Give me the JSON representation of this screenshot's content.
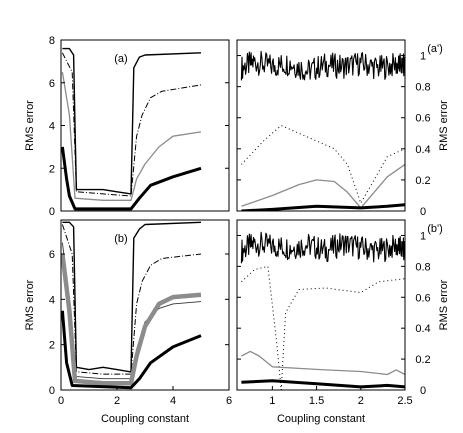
{
  "chart_data": [
    {
      "id": "a",
      "type": "line",
      "panel_label": "(a)",
      "ylabel": "RMS error",
      "xlabel": "",
      "xlim": [
        0,
        6
      ],
      "ylim": [
        0,
        8
      ],
      "yticks": [
        0,
        2,
        4,
        6,
        8
      ],
      "series": [
        {
          "style": "thin-solid",
          "points": [
            [
              0.05,
              7.6
            ],
            [
              0.3,
              7.6
            ],
            [
              0.45,
              7.3
            ],
            [
              0.5,
              4.0
            ],
            [
              0.55,
              1.0
            ],
            [
              1.0,
              1.0
            ],
            [
              1.5,
              1.0
            ],
            [
              2.0,
              0.9
            ],
            [
              2.5,
              0.8
            ],
            [
              2.6,
              6.7
            ],
            [
              2.8,
              7.2
            ],
            [
              3.0,
              7.3
            ],
            [
              5.0,
              7.4
            ]
          ]
        },
        {
          "style": "dash-dot",
          "points": [
            [
              0.05,
              7.4
            ],
            [
              0.4,
              6.5
            ],
            [
              0.55,
              0.9
            ],
            [
              1.5,
              0.8
            ],
            [
              2.5,
              0.7
            ],
            [
              2.7,
              3.5
            ],
            [
              2.9,
              4.5
            ],
            [
              3.2,
              5.3
            ],
            [
              3.6,
              5.6
            ],
            [
              5.0,
              5.9
            ]
          ]
        },
        {
          "style": "gray",
          "points": [
            [
              0.05,
              6.5
            ],
            [
              0.3,
              4.5
            ],
            [
              0.5,
              0.6
            ],
            [
              1.5,
              0.5
            ],
            [
              2.5,
              0.5
            ],
            [
              2.7,
              1.5
            ],
            [
              3.0,
              2.2
            ],
            [
              3.5,
              3.0
            ],
            [
              4.0,
              3.5
            ],
            [
              5.0,
              3.7
            ]
          ]
        },
        {
          "style": "thick",
          "points": [
            [
              0.05,
              3.0
            ],
            [
              0.2,
              1.5
            ],
            [
              0.3,
              0.7
            ],
            [
              0.5,
              0.1
            ],
            [
              2.5,
              0.1
            ],
            [
              2.8,
              0.6
            ],
            [
              3.2,
              1.2
            ],
            [
              4.0,
              1.6
            ],
            [
              5.0,
              2.0
            ]
          ]
        }
      ]
    },
    {
      "id": "a-prime",
      "type": "line",
      "panel_label": "(a')",
      "ylabel": "RMS error",
      "xlabel": "",
      "xlim": [
        0.6,
        2.5
      ],
      "ylim": [
        0,
        1.1
      ],
      "yticks": [
        0,
        0.2,
        0.4,
        0.6,
        0.8,
        1
      ],
      "series": [
        {
          "style": "noisy",
          "points": [
            [
              0.65,
              0.92
            ],
            [
              0.8,
              0.96
            ],
            [
              1.0,
              0.93
            ],
            [
              1.2,
              0.95
            ],
            [
              1.4,
              0.9
            ],
            [
              1.6,
              0.94
            ],
            [
              1.8,
              0.93
            ],
            [
              2.0,
              0.95
            ],
            [
              2.2,
              0.92
            ],
            [
              2.4,
              0.94
            ],
            [
              2.5,
              0.93
            ]
          ]
        },
        {
          "style": "dotted",
          "points": [
            [
              0.65,
              0.3
            ],
            [
              0.9,
              0.45
            ],
            [
              1.1,
              0.55
            ],
            [
              1.3,
              0.5
            ],
            [
              1.5,
              0.45
            ],
            [
              1.7,
              0.4
            ],
            [
              1.85,
              0.3
            ],
            [
              2.0,
              0.05
            ],
            [
              2.15,
              0.2
            ],
            [
              2.3,
              0.35
            ],
            [
              2.5,
              0.4
            ]
          ]
        },
        {
          "style": "gray",
          "points": [
            [
              0.65,
              0.03
            ],
            [
              1.0,
              0.1
            ],
            [
              1.3,
              0.17
            ],
            [
              1.5,
              0.2
            ],
            [
              1.7,
              0.19
            ],
            [
              1.85,
              0.12
            ],
            [
              2.0,
              0.02
            ],
            [
              2.15,
              0.12
            ],
            [
              2.3,
              0.22
            ],
            [
              2.5,
              0.3
            ]
          ]
        },
        {
          "style": "thick",
          "points": [
            [
              0.65,
              0.0
            ],
            [
              1.0,
              0.01
            ],
            [
              1.5,
              0.03
            ],
            [
              2.0,
              0.02
            ],
            [
              2.3,
              0.03
            ],
            [
              2.5,
              0.04
            ]
          ]
        }
      ]
    },
    {
      "id": "b",
      "type": "line",
      "panel_label": "(b)",
      "ylabel": "RMS error",
      "xlabel": "Coupling constant",
      "xlim": [
        0,
        6
      ],
      "ylim": [
        0,
        7.5
      ],
      "xticks": [
        0,
        2,
        4,
        6
      ],
      "yticks": [
        0,
        2,
        4,
        6
      ],
      "series": [
        {
          "style": "thin-solid",
          "points": [
            [
              0.05,
              7.4
            ],
            [
              0.3,
              7.4
            ],
            [
              0.45,
              7.2
            ],
            [
              0.5,
              4.0
            ],
            [
              0.55,
              1.0
            ],
            [
              1.0,
              0.9
            ],
            [
              1.5,
              1.0
            ],
            [
              2.0,
              0.9
            ],
            [
              2.5,
              0.8
            ],
            [
              2.6,
              6.7
            ],
            [
              2.8,
              7.1
            ],
            [
              3.0,
              7.3
            ],
            [
              5.0,
              7.4
            ]
          ]
        },
        {
          "style": "dash-dot",
          "points": [
            [
              0.05,
              7.3
            ],
            [
              0.4,
              6.0
            ],
            [
              0.55,
              0.8
            ],
            [
              1.5,
              0.7
            ],
            [
              2.5,
              0.7
            ],
            [
              2.7,
              3.8
            ],
            [
              2.9,
              4.8
            ],
            [
              3.2,
              5.5
            ],
            [
              3.6,
              5.8
            ],
            [
              5.0,
              6.0
            ]
          ]
        },
        {
          "style": "thin-bundle",
          "points": [
            [
              0.05,
              6.5
            ],
            [
              0.3,
              4.0
            ],
            [
              0.5,
              0.6
            ],
            [
              1.5,
              0.5
            ],
            [
              2.5,
              0.5
            ],
            [
              2.7,
              1.8
            ],
            [
              3.0,
              3.0
            ],
            [
              3.5,
              3.6
            ],
            [
              4.0,
              3.8
            ],
            [
              5.0,
              3.9
            ]
          ]
        },
        {
          "style": "gray-thick",
          "points": [
            [
              0.05,
              6.0
            ],
            [
              0.3,
              3.5
            ],
            [
              0.5,
              0.4
            ],
            [
              1.5,
              0.3
            ],
            [
              2.5,
              0.3
            ],
            [
              2.7,
              1.5
            ],
            [
              3.0,
              2.8
            ],
            [
              3.5,
              3.8
            ],
            [
              4.0,
              4.1
            ],
            [
              5.0,
              4.2
            ]
          ]
        },
        {
          "style": "thick",
          "points": [
            [
              0.05,
              3.5
            ],
            [
              0.2,
              1.2
            ],
            [
              0.4,
              0.2
            ],
            [
              2.5,
              0.1
            ],
            [
              2.8,
              0.5
            ],
            [
              3.2,
              1.2
            ],
            [
              4.0,
              1.9
            ],
            [
              5.0,
              2.4
            ]
          ]
        }
      ]
    },
    {
      "id": "b-prime",
      "type": "line",
      "panel_label": "(b')",
      "ylabel": "RMS error",
      "xlabel": "Coupling constant",
      "xlim": [
        0.6,
        2.5
      ],
      "ylim": [
        0,
        1.1
      ],
      "xticks": [
        1,
        1.5,
        2,
        2.5
      ],
      "yticks": [
        0,
        0.2,
        0.4,
        0.6,
        0.8,
        1
      ],
      "series": [
        {
          "style": "noisy",
          "points": [
            [
              0.65,
              0.9
            ],
            [
              0.8,
              0.95
            ],
            [
              1.0,
              0.93
            ],
            [
              1.2,
              0.92
            ],
            [
              1.4,
              0.94
            ],
            [
              1.6,
              0.9
            ],
            [
              1.8,
              0.95
            ],
            [
              2.0,
              0.92
            ],
            [
              2.2,
              0.9
            ],
            [
              2.4,
              0.93
            ],
            [
              2.5,
              0.9
            ]
          ]
        },
        {
          "style": "dotted",
          "points": [
            [
              0.65,
              0.7
            ],
            [
              0.8,
              0.78
            ],
            [
              0.95,
              0.8
            ],
            [
              1.05,
              0.3
            ],
            [
              1.1,
              0.0
            ],
            [
              1.15,
              0.5
            ],
            [
              1.3,
              0.65
            ],
            [
              1.6,
              0.66
            ],
            [
              2.0,
              0.63
            ],
            [
              2.2,
              0.7
            ],
            [
              2.5,
              0.72
            ]
          ]
        },
        {
          "style": "gray",
          "points": [
            [
              0.65,
              0.22
            ],
            [
              0.75,
              0.25
            ],
            [
              0.85,
              0.22
            ],
            [
              1.0,
              0.15
            ],
            [
              1.3,
              0.14
            ],
            [
              1.6,
              0.13
            ],
            [
              2.0,
              0.12
            ],
            [
              2.3,
              0.1
            ],
            [
              2.4,
              0.13
            ],
            [
              2.5,
              0.1
            ]
          ]
        },
        {
          "style": "thick",
          "points": [
            [
              0.65,
              0.05
            ],
            [
              1.0,
              0.06
            ],
            [
              1.5,
              0.04
            ],
            [
              2.0,
              0.02
            ],
            [
              2.3,
              0.03
            ],
            [
              2.5,
              0.02
            ]
          ]
        }
      ]
    }
  ]
}
